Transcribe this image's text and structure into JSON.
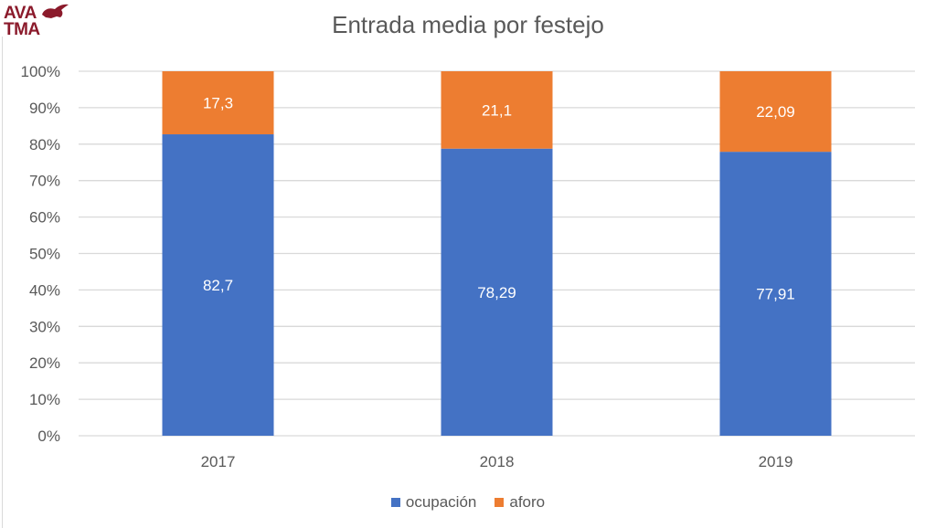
{
  "logo": {
    "line1": "AVA",
    "line2": "TMA"
  },
  "chart_data": {
    "type": "bar",
    "stacked": "percent",
    "title": "Entrada media por festejo",
    "xlabel": "",
    "ylabel": "",
    "categories": [
      "2017",
      "2018",
      "2019"
    ],
    "series": [
      {
        "name": "ocupación",
        "color": "#4472c4",
        "values": [
          82.7,
          78.29,
          77.91
        ],
        "labels": [
          "82,7",
          "78,29",
          "77,91"
        ]
      },
      {
        "name": "aforo",
        "color": "#ed7d31",
        "values": [
          17.3,
          21.1,
          22.09
        ],
        "labels": [
          "17,3",
          "21,1",
          "22,09"
        ]
      }
    ],
    "ylim": [
      0,
      100
    ],
    "yticks": [
      "0%",
      "10%",
      "20%",
      "30%",
      "40%",
      "50%",
      "60%",
      "70%",
      "80%",
      "90%",
      "100%"
    ],
    "grid": true,
    "legend_position": "bottom"
  }
}
